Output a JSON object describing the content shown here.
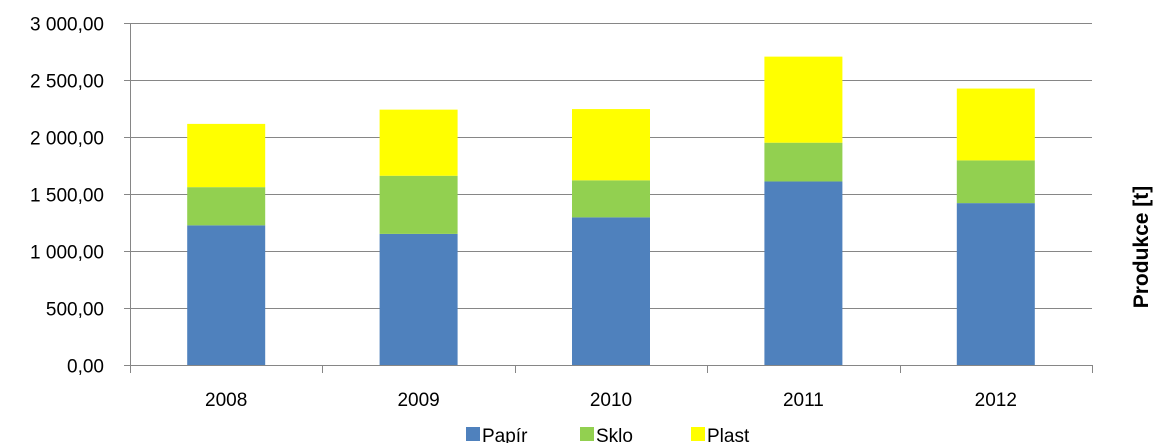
{
  "chart_data": {
    "type": "bar",
    "stacked": true,
    "title": "",
    "xlabel": "",
    "ylabel": "Produkce [t]",
    "categories": [
      "2008",
      "2009",
      "2010",
      "2011",
      "2012"
    ],
    "series": [
      {
        "name": "Papír",
        "color": "#4F81BD",
        "values": [
          1225,
          1150,
          1295,
          1610,
          1420
        ]
      },
      {
        "name": "Sklo",
        "color": "#92D050",
        "values": [
          335,
          510,
          325,
          340,
          375
        ]
      },
      {
        "name": "Plast",
        "color": "#FFFF00",
        "values": [
          555,
          580,
          625,
          755,
          630
        ]
      }
    ],
    "ylim": [
      0,
      3000
    ],
    "yticks": [
      0,
      500,
      1000,
      1500,
      2000,
      2500,
      3000
    ],
    "ytick_labels": [
      "0,00",
      "500,00",
      "1 000,00",
      "1 500,00",
      "2 000,00",
      "2 500,00",
      "3 000,00"
    ],
    "grid": true,
    "legend_position": "bottom"
  }
}
